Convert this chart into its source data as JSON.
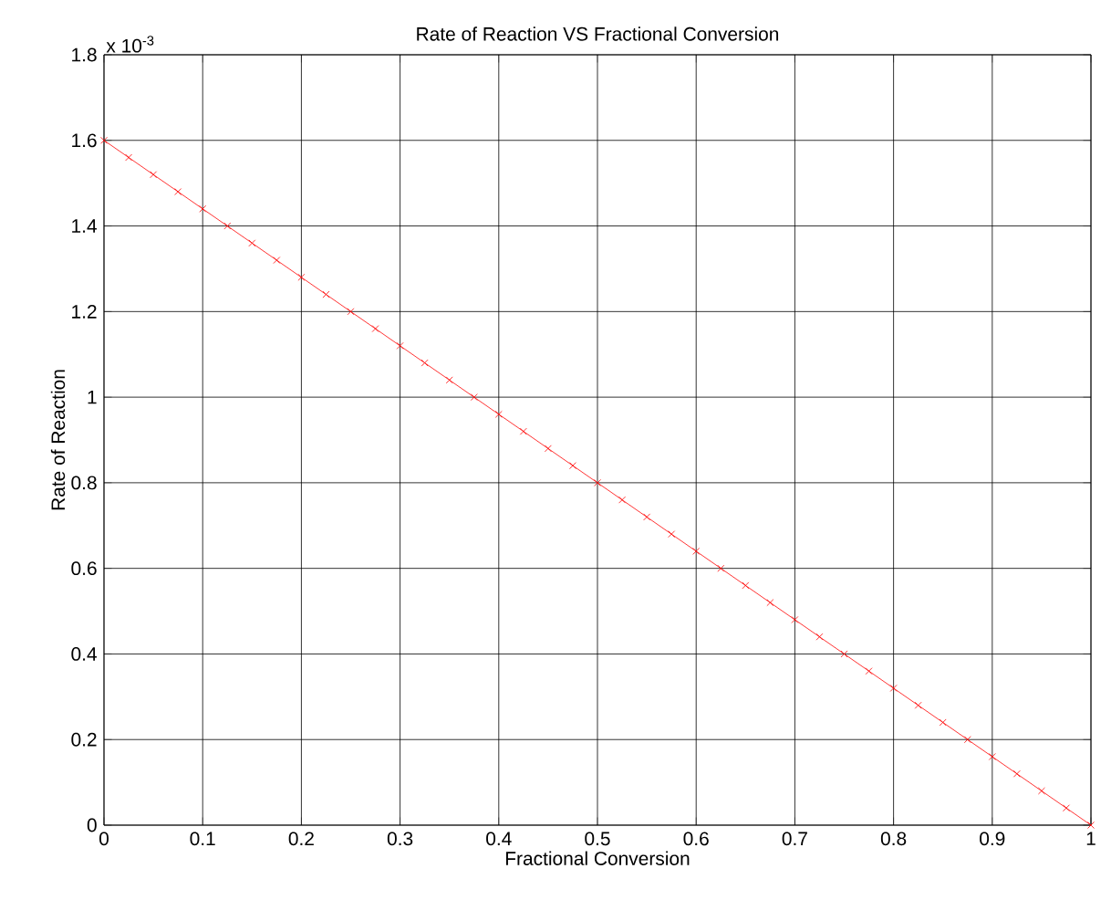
{
  "chart_data": {
    "type": "line",
    "title": "Rate of Reaction VS Fractional Conversion",
    "xlabel": "Fractional Conversion",
    "ylabel": "Rate of Reaction",
    "annotations": [
      "x 10$^{-3}$"
    ],
    "x": [
      0,
      0.025,
      0.05,
      0.075,
      0.1,
      0.125,
      0.15,
      0.175,
      0.2,
      0.225,
      0.25,
      0.275,
      0.3,
      0.325,
      0.35,
      0.375,
      0.4,
      0.425,
      0.45,
      0.475,
      0.5,
      0.525,
      0.55,
      0.575,
      0.6,
      0.625,
      0.65,
      0.675,
      0.7,
      0.725,
      0.75,
      0.775,
      0.8,
      0.825,
      0.85,
      0.875,
      0.9,
      0.925,
      0.95,
      0.975,
      1
    ],
    "series": [
      {
        "color": "#ff0000",
        "values": [
          1.6,
          1.56,
          1.52,
          1.48,
          1.44,
          1.4,
          1.36,
          1.32,
          1.28,
          1.24,
          1.2,
          1.16,
          1.12,
          1.08,
          1.04,
          1.0,
          0.96,
          0.92,
          0.88,
          0.84,
          0.8,
          0.76,
          0.72,
          0.68,
          0.64,
          0.6,
          0.56,
          0.52,
          0.48,
          0.44,
          0.4,
          0.36,
          0.32,
          0.28,
          0.24,
          0.2,
          0.16,
          0.12,
          0.08,
          0.04,
          0
        ]
      }
    ],
    "xlim": [
      0,
      1
    ],
    "ylim": [
      0,
      1.8
    ],
    "xticks": [
      0,
      0.1,
      0.2,
      0.3,
      0.4,
      0.5,
      0.6,
      0.7,
      0.8,
      0.9,
      1
    ],
    "yticks": [
      0,
      0.2,
      0.4,
      0.6,
      0.8,
      1,
      1.2,
      1.4,
      1.6,
      1.8
    ],
    "grid": true,
    "marker": "cross",
    "line_style": "solid"
  }
}
